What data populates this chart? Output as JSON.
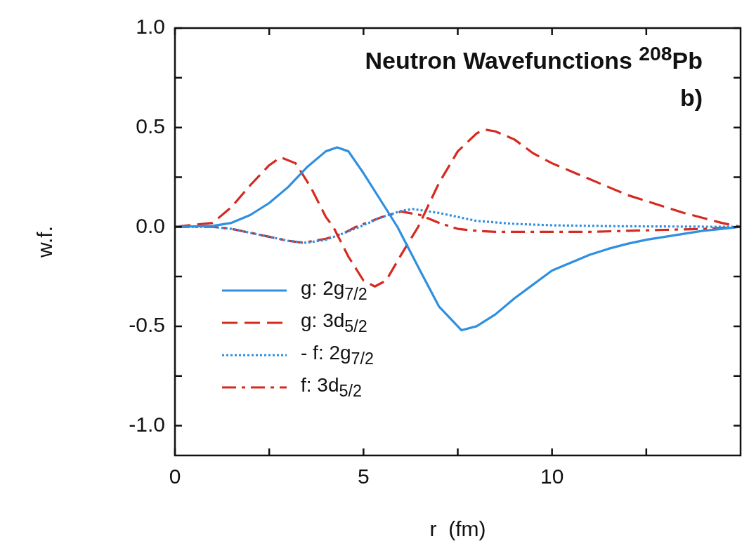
{
  "chart_data": {
    "type": "line",
    "title": "Neutron Wavefunctions $^{208}$Pb",
    "xlabel": "r  (fm)",
    "ylabel": "w.f.",
    "annotations": [
      "b)"
    ],
    "xlim": [
      0,
      15
    ],
    "xticks": [
      0,
      5,
      10,
      {
        "value": 2.5,
        "label": null
      },
      {
        "value": 7.5,
        "label": null
      },
      {
        "value": 12.5,
        "label": null
      }
    ],
    "ylim": [
      -1.15,
      1.0
    ],
    "yticks": [
      {
        "value": -1,
        "label": "-1.0"
      },
      {
        "value": -0.5,
        "label": "-0.5"
      },
      {
        "value": 0,
        "label": "0.0"
      },
      {
        "value": 0.5,
        "label": "0.5"
      },
      {
        "value": 1,
        "label": "1.0"
      },
      {
        "value": -0.75,
        "label": null
      },
      {
        "value": -0.25,
        "label": null
      },
      {
        "value": 0.25,
        "label": null
      },
      {
        "value": 0.75,
        "label": null
      }
    ],
    "legend": "bottom left",
    "marker": "none",
    "series": [
      {
        "name": "g: 2g$_{7/2}$",
        "color": "#2f8fe0",
        "line_style": "solid",
        "x": [
          0,
          1,
          1.5,
          2,
          2.5,
          3,
          3.5,
          4,
          4.3,
          4.6,
          5,
          5.5,
          5.9,
          6.5,
          7,
          7.6,
          8,
          8.5,
          9,
          9.5,
          10,
          10.5,
          11,
          11.5,
          12,
          12.5,
          13,
          13.5,
          14,
          14.5,
          15
        ],
        "values": [
          0,
          0.005,
          0.02,
          0.06,
          0.12,
          0.2,
          0.3,
          0.38,
          0.4,
          0.38,
          0.27,
          0.12,
          0,
          -0.22,
          -0.4,
          -0.52,
          -0.5,
          -0.44,
          -0.36,
          -0.29,
          -0.22,
          -0.18,
          -0.14,
          -0.11,
          -0.085,
          -0.065,
          -0.05,
          -0.035,
          -0.02,
          -0.01,
          0
        ]
      },
      {
        "name": "g: 3d$_{5/2}$",
        "color": "#d52a20",
        "line_style": "dashed",
        "x": [
          0,
          1,
          1.5,
          2,
          2.5,
          2.8,
          3.2,
          3.6,
          4,
          4.2,
          4.6,
          5,
          5.3,
          5.6,
          6,
          6.45,
          7,
          7.5,
          8,
          8.2,
          8.5,
          9,
          9.5,
          10,
          10.5,
          11,
          11.5,
          12,
          12.5,
          13,
          13.5,
          14,
          14.5,
          15
        ],
        "values": [
          0,
          0.02,
          0.1,
          0.21,
          0.31,
          0.35,
          0.32,
          0.2,
          0.05,
          0,
          -0.15,
          -0.27,
          -0.3,
          -0.27,
          -0.14,
          0,
          0.22,
          0.38,
          0.47,
          0.49,
          0.48,
          0.44,
          0.37,
          0.32,
          0.28,
          0.24,
          0.2,
          0.16,
          0.13,
          0.1,
          0.07,
          0.045,
          0.02,
          0
        ]
      },
      {
        "name": "- f: 2g$_{7/2}$",
        "color": "#2f8fe0",
        "line_style": "dotted",
        "x": [
          0,
          1,
          1.5,
          2,
          2.5,
          3,
          3.5,
          4,
          4.5,
          4.9,
          5.5,
          6,
          6.3,
          7,
          7.5,
          8,
          9,
          10,
          11,
          12,
          13,
          14,
          15
        ],
        "values": [
          0,
          0,
          -0.01,
          -0.03,
          -0.05,
          -0.07,
          -0.08,
          -0.065,
          -0.03,
          0,
          0.05,
          0.08,
          0.09,
          0.07,
          0.05,
          0.03,
          0.015,
          0.008,
          0.005,
          0.003,
          0.002,
          0.001,
          0
        ]
      },
      {
        "name": "f: 3d$_{5/2}$",
        "color": "#d52a20",
        "line_style": "dashdot",
        "x": [
          0,
          1,
          1.5,
          2,
          2.5,
          3,
          3.4,
          4,
          4.5,
          4.8,
          5.5,
          6,
          6.5,
          7,
          7.5,
          8,
          8.5,
          9,
          10,
          11,
          12,
          13,
          14,
          15
        ],
        "values": [
          0,
          0,
          -0.01,
          -0.03,
          -0.05,
          -0.07,
          -0.08,
          -0.06,
          -0.03,
          0,
          0.05,
          0.077,
          0.06,
          0.02,
          -0.01,
          -0.02,
          -0.025,
          -0.025,
          -0.025,
          -0.025,
          -0.02,
          -0.015,
          -0.01,
          0
        ]
      }
    ]
  }
}
